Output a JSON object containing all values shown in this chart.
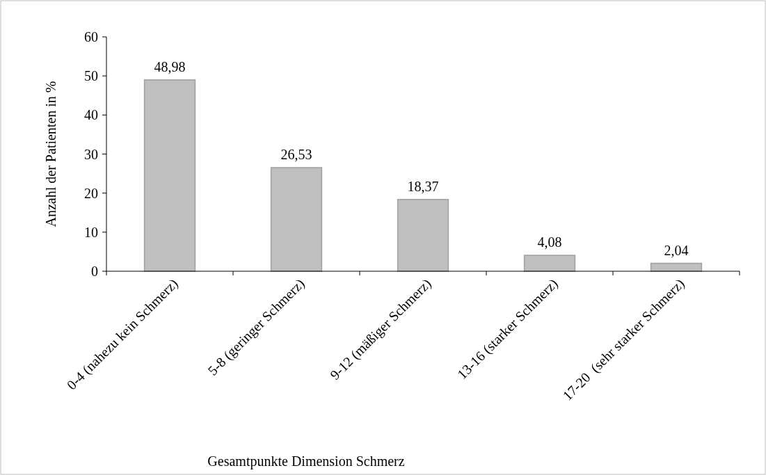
{
  "chart_data": {
    "type": "bar",
    "xlabel": "Gesamtpunkte Dimension Schmerz",
    "ylabel": "Anzahl der Patienten in %",
    "categories": [
      "0-4 (nahezu kein Schmerz)",
      "5-8 (geringer Schmerz)",
      "9-12 (mäßiger Schmerz)",
      "13-16 (starker Schmerz)",
      "17-20  (sehr starker Schmerz)"
    ],
    "values": [
      48.98,
      26.53,
      18.37,
      4.08,
      2.04
    ],
    "value_labels": [
      "48,98",
      "26,53",
      "18,37",
      "4,08",
      "2,04"
    ],
    "color": "#bfbfbf",
    "ylim": [
      0,
      60
    ],
    "yticks": [
      0,
      10,
      20,
      30,
      40,
      50,
      60
    ],
    "grid": false
  }
}
